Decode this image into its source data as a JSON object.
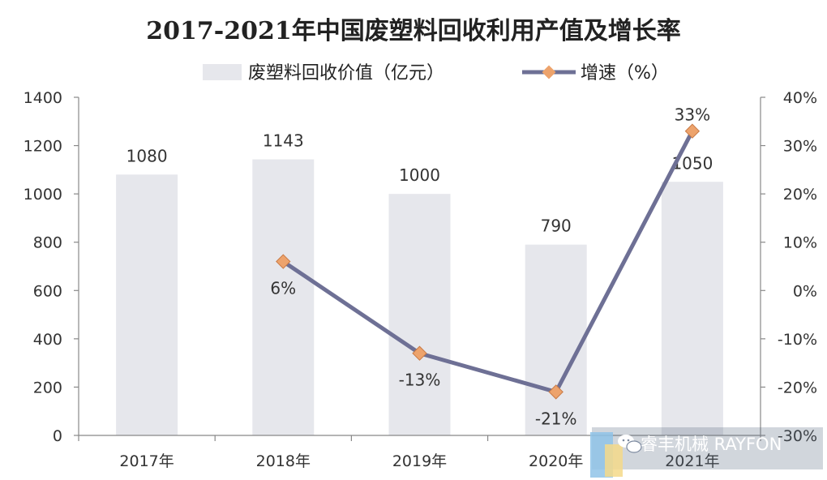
{
  "chart_data": {
    "type": "bar",
    "title": "2017-2021年中国废塑料回收利用产值及增长率",
    "categories": [
      "2017年",
      "2018年",
      "2019年",
      "2020年",
      "2021年"
    ],
    "series": [
      {
        "name": "废塑料回收价值（亿元）",
        "type": "bar",
        "axis": "left",
        "color": "#e6e7ec",
        "values": [
          1080,
          1143,
          1000,
          790,
          1050
        ],
        "labels": [
          "1080",
          "1143",
          "1000",
          "790",
          "1050"
        ]
      },
      {
        "name": "增速（%）",
        "type": "line",
        "axis": "right",
        "color": "#6e7095",
        "marker_color": "#eda36c",
        "values": [
          null,
          6,
          -13,
          -21,
          33
        ],
        "labels": [
          "",
          "6%",
          "-13%",
          "-21%",
          "33%"
        ]
      }
    ],
    "y_left": {
      "min": 0,
      "max": 1400,
      "ticks": [
        0,
        200,
        400,
        600,
        800,
        1000,
        1200,
        1400
      ],
      "tick_labels": [
        "0",
        "200",
        "400",
        "600",
        "800",
        "1000",
        "1200",
        "1400"
      ]
    },
    "y_right": {
      "min": -30,
      "max": 40,
      "ticks": [
        -30,
        -20,
        -10,
        0,
        10,
        20,
        30,
        40
      ],
      "tick_labels": [
        "-30%",
        "-20%",
        "-10%",
        "0%",
        "10%",
        "20%",
        "30%",
        "40%"
      ]
    },
    "legend_position": "top-center",
    "grid": false
  },
  "watermark": {
    "text": "睿丰机械 RAYFON",
    "icon": "wechat-icon"
  }
}
